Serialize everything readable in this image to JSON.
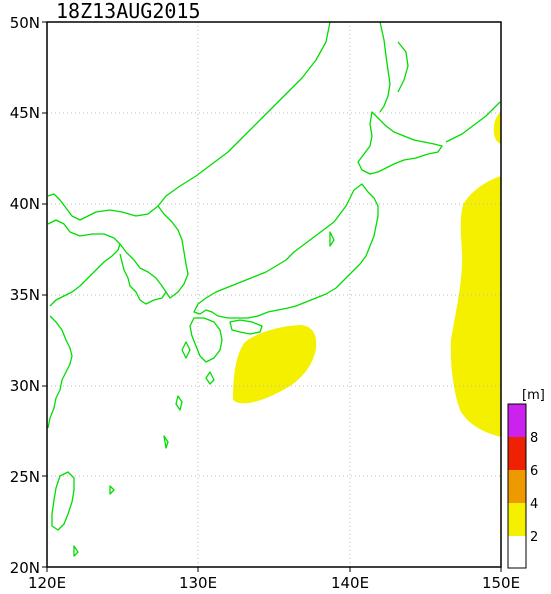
{
  "title": "18Z13AUG2015",
  "map": {
    "lon_range": [
      120,
      150
    ],
    "lat_range": [
      20,
      50
    ],
    "lat_labels": [
      "20N",
      "25N",
      "30N",
      "35N",
      "40N",
      "45N",
      "50N"
    ],
    "lon_labels": [
      "120E",
      "130E",
      "140E",
      "150E"
    ],
    "coastline_color": "#00dd00",
    "grid": true
  },
  "wave_fields": [
    {
      "name": "south-of-japan",
      "level": "2-4",
      "color": "#f4f000"
    },
    {
      "name": "east-pacific",
      "level": "2-4",
      "color": "#f4f000"
    },
    {
      "name": "northeast-corner",
      "level": "2-4",
      "color": "#f4f000"
    }
  ],
  "legend": {
    "unit": "[m]",
    "labels": [
      "8",
      "6",
      "4",
      "2"
    ],
    "colors": [
      "#cc22ee",
      "#ee2200",
      "#ee9900",
      "#f4f000",
      "#ffffff"
    ]
  }
}
